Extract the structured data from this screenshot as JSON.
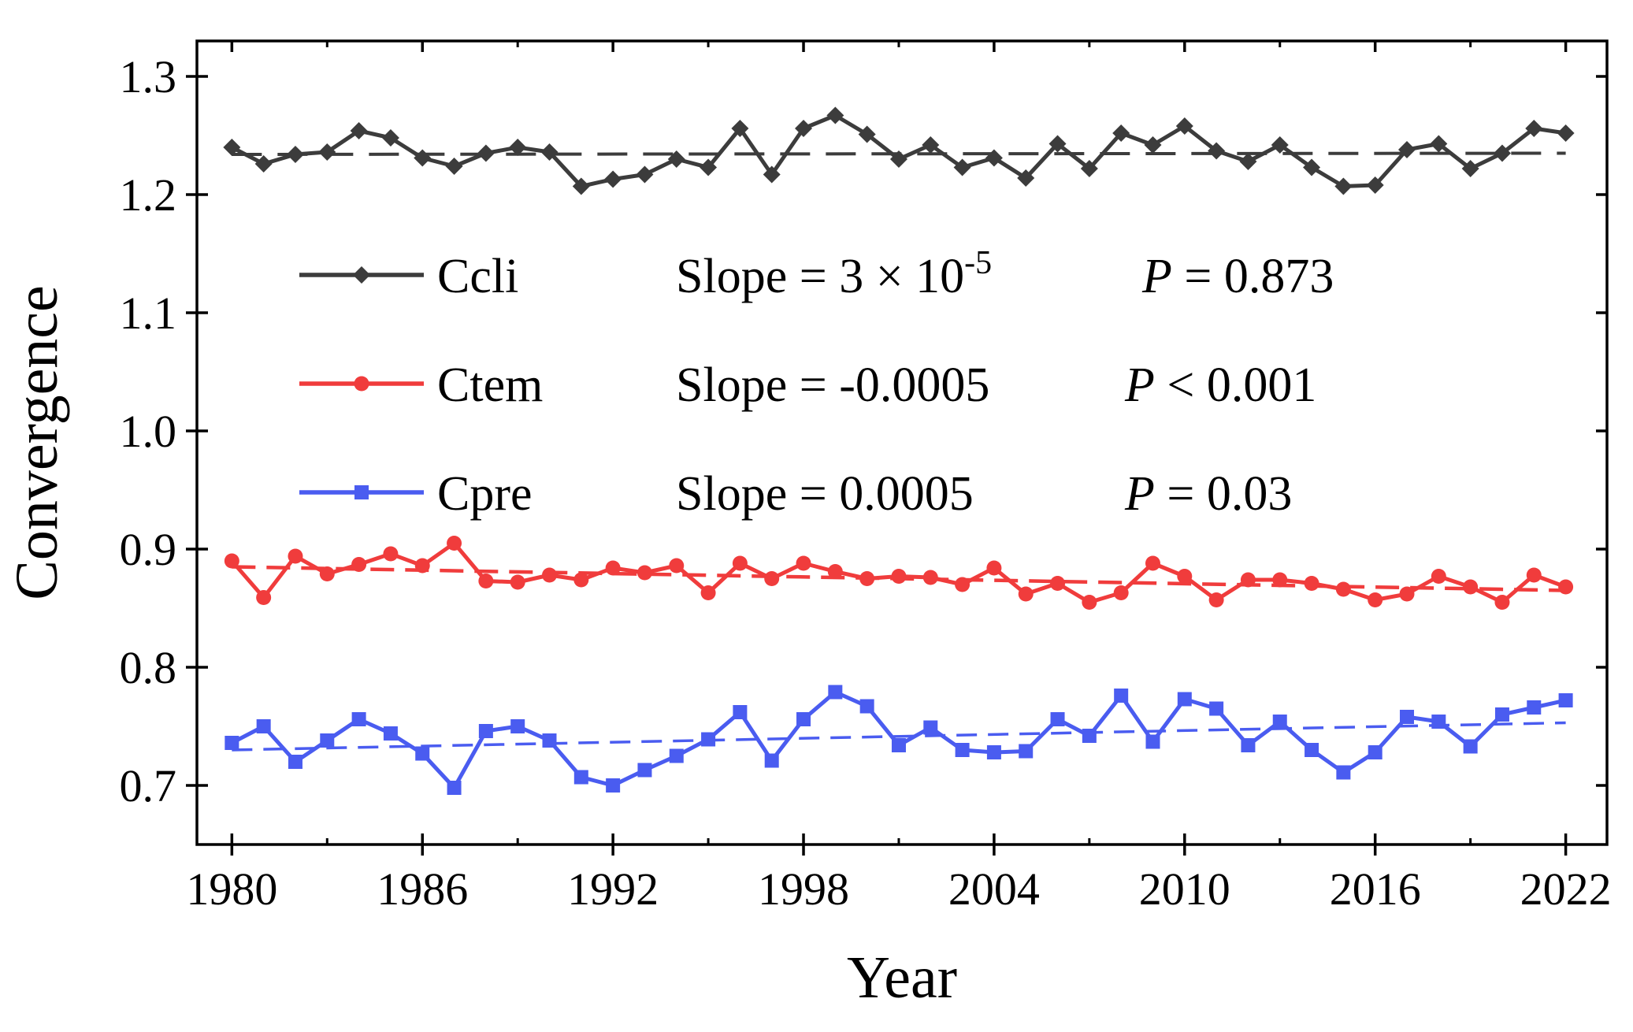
{
  "chart_data": {
    "type": "line",
    "title": "",
    "xlabel": "Year",
    "ylabel": "Convergence",
    "xlim": [
      1978.9,
      2023.3
    ],
    "ylim": [
      0.65,
      1.33
    ],
    "xticks": [
      1980,
      1986,
      1992,
      1998,
      2004,
      2010,
      2016,
      2022
    ],
    "xtick_labels": [
      "1980",
      "1986",
      "1992",
      "1998",
      "2004",
      "2010",
      "2016",
      "2022"
    ],
    "yticks": [
      0.7,
      0.8,
      0.9,
      1.0,
      1.1,
      1.2,
      1.3
    ],
    "ytick_labels": [
      "0.7",
      "0.8",
      "0.9",
      "1.0",
      "1.1",
      "1.2",
      "1.3"
    ],
    "grid": false,
    "legend_position": "upper-center",
    "x": [
      1980,
      1981,
      1982,
      1983,
      1984,
      1985,
      1986,
      1987,
      1988,
      1989,
      1990,
      1991,
      1992,
      1993,
      1994,
      1995,
      1996,
      1997,
      1998,
      1999,
      2000,
      2001,
      2002,
      2003,
      2004,
      2005,
      2006,
      2007,
      2008,
      2009,
      2010,
      2011,
      2012,
      2013,
      2014,
      2015,
      2016,
      2017,
      2018,
      2019,
      2020,
      2021,
      2022
    ],
    "series": [
      {
        "name": "Ccli",
        "color": "#3c3c3c",
        "marker": "diamond",
        "slope_text": "Slope = 3 × 10",
        "slope_exp": "-5",
        "p_label": "P",
        "p_text": " = 0.873",
        "trend": [
          1.234,
          1.235
        ],
        "values": [
          1.24,
          1.226,
          1.234,
          1.236,
          1.254,
          1.248,
          1.231,
          1.224,
          1.235,
          1.24,
          1.236,
          1.207,
          1.213,
          1.217,
          1.23,
          1.223,
          1.256,
          1.217,
          1.256,
          1.267,
          1.251,
          1.23,
          1.242,
          1.223,
          1.231,
          1.214,
          1.243,
          1.222,
          1.252,
          1.242,
          1.258,
          1.237,
          1.228,
          1.242,
          1.223,
          1.207,
          1.208,
          1.238,
          1.243,
          1.222,
          1.235,
          1.256,
          1.252
        ]
      },
      {
        "name": "Ctem",
        "color": "#f03c3c",
        "marker": "circle",
        "slope_text": "Slope = -0.0005",
        "slope_exp": "",
        "p_label": "P",
        "p_text": " < 0.001",
        "trend": [
          0.885,
          0.865
        ],
        "values": [
          0.89,
          0.859,
          0.894,
          0.879,
          0.887,
          0.896,
          0.886,
          0.905,
          0.873,
          0.872,
          0.878,
          0.874,
          0.884,
          0.88,
          0.886,
          0.863,
          0.888,
          0.875,
          0.888,
          0.881,
          0.875,
          0.877,
          0.876,
          0.87,
          0.884,
          0.862,
          0.871,
          0.855,
          0.863,
          0.888,
          0.877,
          0.857,
          0.874,
          0.874,
          0.871,
          0.866,
          0.857,
          0.862,
          0.877,
          0.868,
          0.855,
          0.878,
          0.868
        ]
      },
      {
        "name": "Cpre",
        "color": "#4a5cf0",
        "marker": "square",
        "slope_text": "Slope = 0.0005",
        "slope_exp": "",
        "p_label": "P",
        "p_text": " = 0.03",
        "trend": [
          0.73,
          0.753
        ],
        "values": [
          0.736,
          0.75,
          0.72,
          0.738,
          0.756,
          0.744,
          0.727,
          0.698,
          0.746,
          0.75,
          0.738,
          0.707,
          0.7,
          0.713,
          0.725,
          0.739,
          0.762,
          0.721,
          0.756,
          0.779,
          0.767,
          0.734,
          0.749,
          0.73,
          0.728,
          0.729,
          0.756,
          0.742,
          0.776,
          0.737,
          0.773,
          0.765,
          0.734,
          0.754,
          0.73,
          0.711,
          0.728,
          0.758,
          0.754,
          0.733,
          0.76,
          0.766,
          0.772
        ]
      }
    ]
  }
}
